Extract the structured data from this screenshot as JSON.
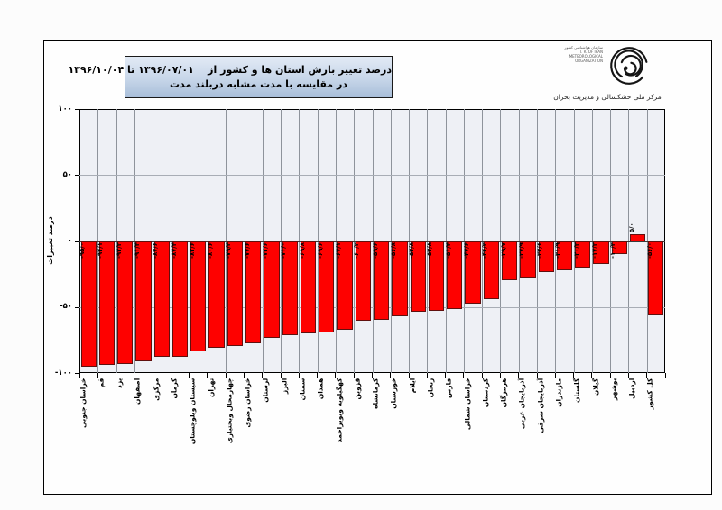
{
  "header": {
    "title_line1": "درصد تغییر بارش استان ها و کشور از    ۱۳۹۶/۰۷/۰۱ تا ۱۳۹۶/۱۰/۰۴",
    "title_line2": "در مقایسه با مدت مشابه دربلند مدت"
  },
  "logo": {
    "caption": "مرکز ملی خشکسالی و مدیریت بحران",
    "org_text_lines": [
      "سازمان هواشناسی کشور",
      "I. R. OF IRAN",
      "METEOROLOGICAL ORGANIZATION"
    ]
  },
  "chart_data": {
    "type": "bar",
    "title": "درصد تغییر بارش استان ها و کشور از ۱۳۹۶/۰۷/۰۱ تا ۱۳۹۶/۱۰/۰۴ در مقایسه با مدت مشابه دربلند مدت",
    "xlabel": "",
    "ylabel": "درصد تغییرات",
    "ylim": [
      -100,
      100
    ],
    "grid": true,
    "legend": false,
    "bar_color": "#fe0100",
    "yticks_values": [
      100,
      50,
      0,
      -50,
      -100
    ],
    "yticks_labels": [
      "۱۰۰",
      "۵۰",
      "۰",
      "-۵۰",
      "-۱۰۰"
    ],
    "categories": [
      "خراسان جنوبی",
      "قم",
      "یزد",
      "اصفهان",
      "مرکزی",
      "کرمان",
      "سیستان وبلوچستان",
      "تهران",
      "چهارمحال وبختیاری",
      "خراسان رضوی",
      "لرستان",
      "البرز",
      "سمنان",
      "همدان",
      "کهگیلویه وبویراحمد",
      "قزوین",
      "کرمانشاه",
      "خوزستان",
      "ایلام",
      "زنجان",
      "فارس",
      "خراسان شمالی",
      "کردستان",
      "هرمزگان",
      "آذربایجان غربی",
      "آذربایجان شرقی",
      "مازندران",
      "گلستان",
      "گیلان",
      "بوشهر",
      "اردبیل",
      "کل کشور"
    ],
    "values": [
      -95.0,
      -94.1,
      -93.2,
      -91.4,
      -87.6,
      -87.4,
      -83.6,
      -80.6,
      -79.4,
      -77.6,
      -73.6,
      -71.0,
      -69.8,
      -69.6,
      -67.1,
      -60.2,
      -59.6,
      -56.8,
      -53.8,
      -52.8,
      -51.4,
      -47.6,
      -44.2,
      -29.7,
      -27.9,
      -23.6,
      -21.9,
      -20.2,
      -17.2,
      -10.2,
      5.0,
      -56.0
    ],
    "value_labels": [
      "-۹۵/۰",
      "-۹۴/۱",
      "-۹۳/۲",
      "-۹۱/۴",
      "-۸۷/۶",
      "-۸۷/۴",
      "-۸۳/۶",
      "-۸۰/۶",
      "-۷۹/۴",
      "-۷۷/۶",
      "-۷۳/۶",
      "-۷۱/۰",
      "-۶۹/۸",
      "-۶۹/۶",
      "-۶۷/۱",
      "-۶۰/۲",
      "-۵۹/۶",
      "-۵۶/۸",
      "-۵۳/۸",
      "-۵۲/۸",
      "-۵۱/۴",
      "-۴۷/۶",
      "-۴۴/۲",
      "-۲۹/۷",
      "-۲۷/۹",
      "-۲۳/۶",
      "-۲۱/۹",
      "-۲۰/۲",
      "-۱۷/۲",
      "-۱۰/۲",
      "۵/۰",
      "-۵۶/۰"
    ]
  }
}
